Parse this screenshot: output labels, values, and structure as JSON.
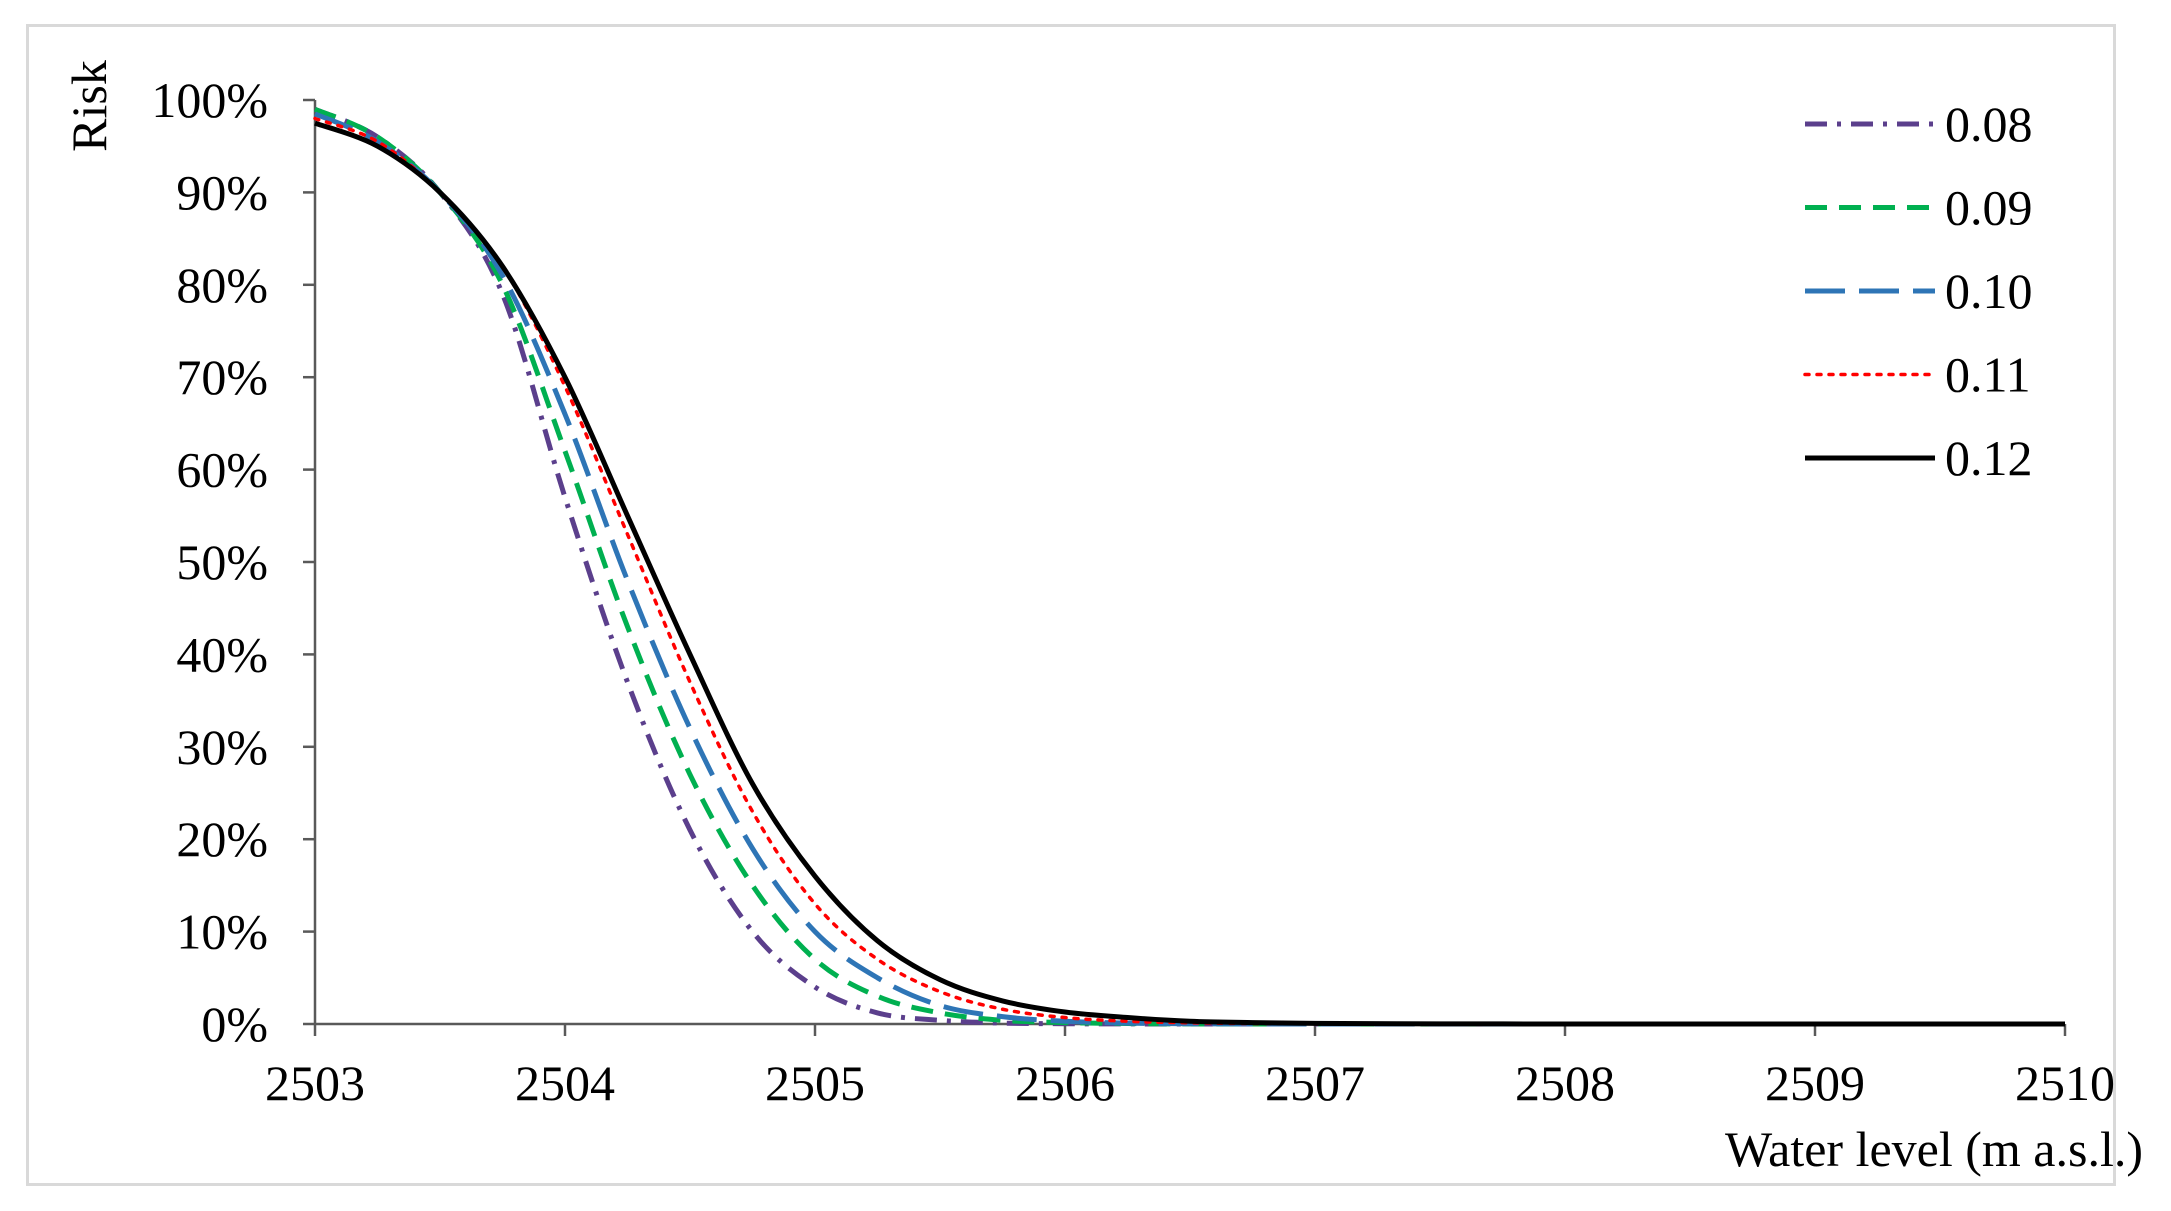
{
  "chart_data": {
    "type": "line",
    "xlabel": "Water level (m a.s.l.)",
    "ylabel": "Risk",
    "xlim": [
      2503,
      2510
    ],
    "ylim": [
      0,
      1
    ],
    "x_ticks": [
      2503,
      2504,
      2505,
      2506,
      2507,
      2508,
      2509,
      2510
    ],
    "x_tick_labels": [
      "2503",
      "2504",
      "2505",
      "2506",
      "2507",
      "2508",
      "2509",
      "2510"
    ],
    "y_ticks": [
      0,
      0.1,
      0.2,
      0.3,
      0.4,
      0.5,
      0.6,
      0.7,
      0.8,
      0.9,
      1.0
    ],
    "y_tick_labels": [
      "0%",
      "10%",
      "20%",
      "30%",
      "40%",
      "50%",
      "60%",
      "70%",
      "80%",
      "90%",
      "100%"
    ],
    "grid": false,
    "legend_position": "top-right",
    "x": [
      2503.0,
      2503.25,
      2503.5,
      2503.75,
      2504.0,
      2504.25,
      2504.5,
      2504.75,
      2505.0,
      2505.25,
      2505.5,
      2505.75,
      2506.0,
      2506.25,
      2506.5,
      2506.75,
      2507.0,
      2507.5,
      2508.0,
      2508.5,
      2509.0,
      2509.5,
      2510.0
    ],
    "series": [
      {
        "name": "0.08",
        "color": "#5b3f8c",
        "dash": "dashdot",
        "values": [
          0.99,
          0.96,
          0.9,
          0.79,
          0.57,
          0.37,
          0.21,
          0.1,
          0.04,
          0.012,
          0.004,
          0.001,
          0.0003,
          0.0001,
          0.0,
          0.0,
          0.0,
          0.0,
          0.0,
          0.0,
          0.0,
          0.0,
          0.0
        ]
      },
      {
        "name": "0.09",
        "color": "#00b050",
        "dash": "dashed",
        "values": [
          0.99,
          0.96,
          0.9,
          0.8,
          0.62,
          0.43,
          0.27,
          0.15,
          0.07,
          0.03,
          0.012,
          0.004,
          0.0015,
          0.0005,
          0.0001,
          0.0,
          0.0,
          0.0,
          0.0,
          0.0,
          0.0,
          0.0,
          0.0
        ]
      },
      {
        "name": "0.10",
        "color": "#2e75b6",
        "dash": "longdash",
        "values": [
          0.985,
          0.955,
          0.9,
          0.81,
          0.66,
          0.48,
          0.32,
          0.19,
          0.1,
          0.05,
          0.02,
          0.008,
          0.003,
          0.001,
          0.0003,
          0.0001,
          0.0,
          0.0,
          0.0,
          0.0,
          0.0,
          0.0,
          0.0
        ]
      },
      {
        "name": "0.11",
        "color": "#ff0000",
        "dash": "dotted",
        "values": [
          0.98,
          0.955,
          0.9,
          0.82,
          0.69,
          0.53,
          0.37,
          0.23,
          0.13,
          0.07,
          0.035,
          0.016,
          0.007,
          0.003,
          0.0013,
          0.0005,
          0.0002,
          0.0,
          0.0,
          0.0,
          0.0,
          0.0,
          0.0
        ]
      },
      {
        "name": "0.12",
        "color": "#000000",
        "dash": "solid",
        "values": [
          0.975,
          0.95,
          0.9,
          0.82,
          0.7,
          0.55,
          0.4,
          0.26,
          0.16,
          0.09,
          0.048,
          0.025,
          0.013,
          0.007,
          0.003,
          0.0015,
          0.0007,
          0.0002,
          0.0,
          0.0,
          0.0,
          0.0,
          0.0
        ]
      }
    ]
  }
}
